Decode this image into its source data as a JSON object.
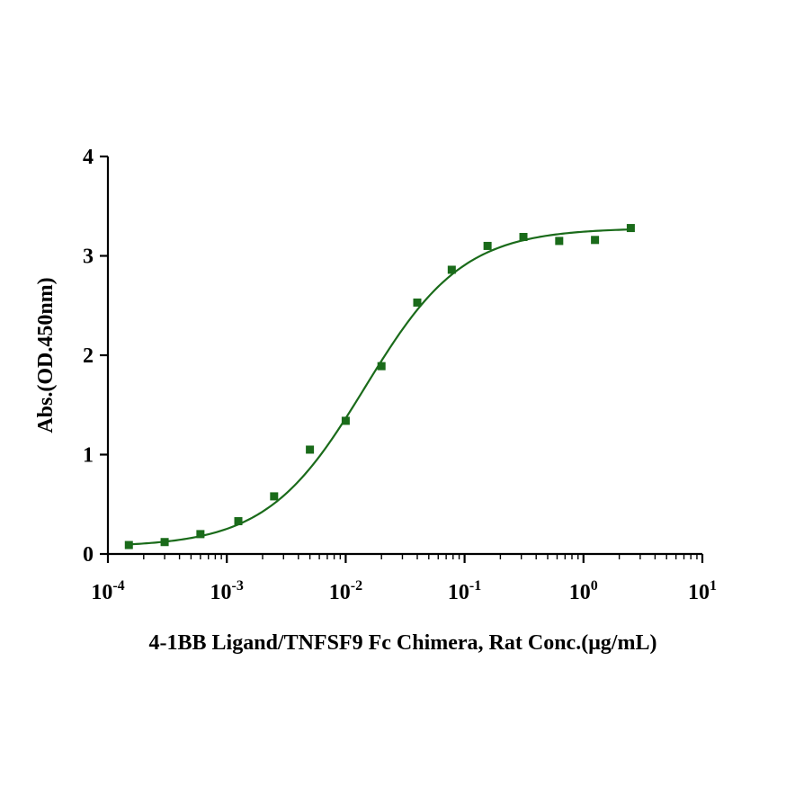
{
  "chart_data": {
    "type": "scatter",
    "xlabel": "4-1BB Ligand/TNFSF9 Fc Chimera, Rat Conc.(μg/mL)",
    "ylabel": "Abs.(OD.450nm)",
    "xscale": "log",
    "xlim": [
      0.0001,
      10
    ],
    "ylim": [
      0,
      4
    ],
    "yticks": [
      "0",
      "1",
      "2",
      "3",
      "4"
    ],
    "xticks": [
      {
        "base": "10",
        "exp": "-4"
      },
      {
        "base": "10",
        "exp": "-3"
      },
      {
        "base": "10",
        "exp": "-2"
      },
      {
        "base": "10",
        "exp": "-1"
      },
      {
        "base": "10",
        "exp": "0"
      },
      {
        "base": "10",
        "exp": "1"
      }
    ],
    "grid": false,
    "legend": "none",
    "series": [
      {
        "marker": "square",
        "color": "#1a6b1a",
        "x": [
          0.00015,
          0.0003,
          0.0006,
          0.00125,
          0.0025,
          0.005,
          0.01,
          0.02,
          0.04,
          0.078,
          0.156,
          0.3125,
          0.625,
          1.25,
          2.5
        ],
        "y": [
          0.09,
          0.12,
          0.2,
          0.33,
          0.58,
          1.05,
          1.34,
          1.89,
          2.53,
          2.86,
          3.1,
          3.19,
          3.15,
          3.16,
          3.28
        ]
      }
    ],
    "fit_curve": {
      "model": "4PL",
      "color": "#1a6b1a",
      "bottom": 0.07,
      "top": 3.28,
      "ec50": 0.0145,
      "hill": 1.05,
      "x_range": [
        0.00015,
        2.5
      ]
    }
  }
}
